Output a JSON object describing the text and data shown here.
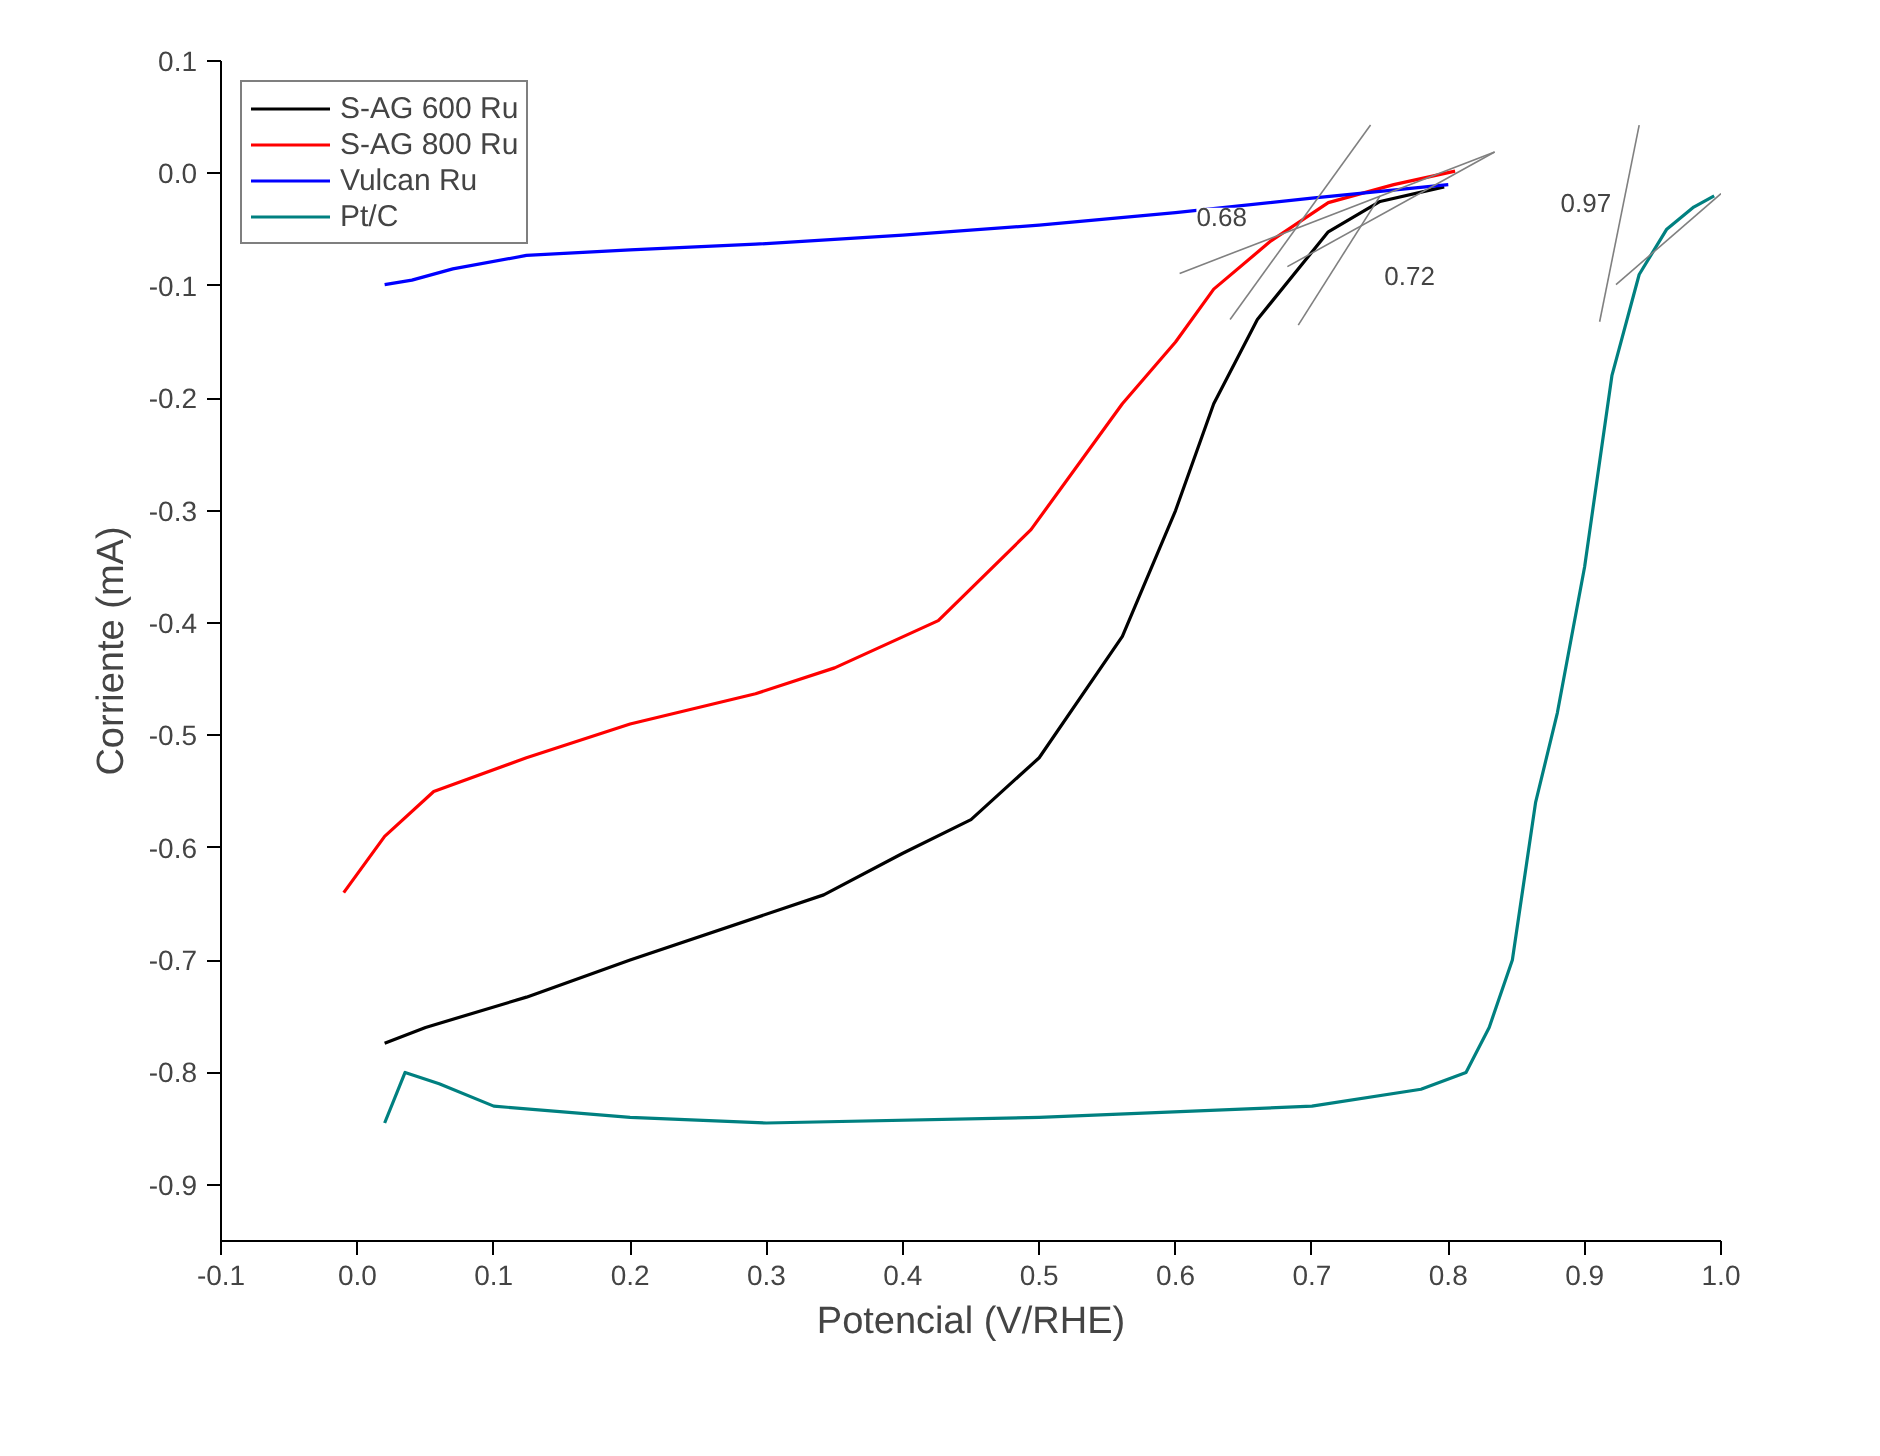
{
  "chart_data": {
    "type": "line",
    "xlabel": "Potencial (V/RHE)",
    "ylabel": "Corriente (mA)",
    "xlim": [
      -0.1,
      1.0
    ],
    "ylim": [
      -0.95,
      0.1
    ],
    "xticks": [
      -0.1,
      {
        "value": 0,
        "label": "0.0"
      },
      0.1,
      0.2,
      0.3,
      0.4,
      0.5,
      0.6,
      0.7,
      0.8,
      0.9,
      {
        "value": 1,
        "label": "1.0"
      }
    ],
    "yticks": [
      0.1,
      {
        "value": 0,
        "label": "0.0"
      },
      -0.1,
      -0.2,
      -0.3,
      -0.4,
      -0.5,
      -0.6,
      -0.7,
      -0.8,
      -0.9
    ],
    "grid": false,
    "legend": "top left",
    "marker": "none",
    "line_style": "solid",
    "series": [
      {
        "name": "S-AG 600 Ru",
        "color": "#000000",
        "x": [
          0.02,
          0.05,
          0.124,
          0.2,
          0.342,
          0.4,
          0.45,
          0.5,
          0.561,
          0.6,
          0.628,
          0.66,
          0.712,
          0.75,
          0.797
        ],
        "values": [
          -0.774,
          -0.76,
          -0.733,
          -0.7,
          -0.642,
          -0.605,
          -0.575,
          -0.52,
          -0.412,
          -0.3,
          -0.205,
          -0.13,
          -0.052,
          -0.025,
          -0.012
        ]
      },
      {
        "name": "S-AG 800 Ru",
        "color": "#ff0000",
        "x": [
          -0.01,
          0.02,
          0.056,
          0.124,
          0.2,
          0.292,
          0.35,
          0.426,
          0.494,
          0.561,
          0.6,
          0.628,
          0.67,
          0.712,
          0.76,
          0.805
        ],
        "values": [
          -0.64,
          -0.59,
          -0.55,
          -0.52,
          -0.49,
          -0.463,
          -0.44,
          -0.398,
          -0.317,
          -0.205,
          -0.15,
          -0.103,
          -0.06,
          -0.026,
          -0.01,
          0.002
        ]
      },
      {
        "name": "Vulcan Ru",
        "color": "#0000ff",
        "x": [
          0.02,
          0.04,
          0.07,
          0.124,
          0.2,
          0.292,
          0.4,
          0.5,
          0.6,
          0.7,
          0.8
        ],
        "values": [
          -0.099,
          -0.095,
          -0.085,
          -0.073,
          -0.068,
          -0.063,
          -0.055,
          -0.046,
          -0.035,
          -0.022,
          -0.01
        ]
      },
      {
        "name": "Pt/C",
        "color": "#008080",
        "x": [
          0.02,
          0.035,
          0.06,
          0.1,
          0.2,
          0.3,
          0.5,
          0.7,
          0.78,
          0.813,
          0.83,
          0.847,
          0.864,
          0.88,
          0.9,
          0.92,
          0.94,
          0.96,
          0.98,
          0.995
        ],
        "values": [
          -0.845,
          -0.8,
          -0.81,
          -0.83,
          -0.84,
          -0.845,
          -0.84,
          -0.83,
          -0.815,
          -0.8,
          -0.76,
          -0.7,
          -0.56,
          -0.48,
          -0.35,
          -0.18,
          -0.09,
          -0.05,
          -0.03,
          -0.02
        ]
      },
      {
        "color": "#808080",
        "x": [
          0.603,
          0.834
        ],
        "values": [
          -0.089,
          0.019
        ]
      },
      {
        "color": "#808080",
        "x": [
          0.64,
          0.743
        ],
        "values": [
          -0.13,
          0.043
        ]
      },
      {
        "color": "#808080",
        "x": [
          0.682,
          0.834
        ],
        "values": [
          -0.083,
          0.019
        ]
      },
      {
        "color": "#808080",
        "x": [
          0.69,
          0.75
        ],
        "values": [
          -0.135,
          -0.02
        ]
      },
      {
        "color": "#808080",
        "x": [
          0.923,
          1.0
        ],
        "values": [
          -0.099,
          -0.018
        ]
      },
      {
        "color": "#808080",
        "x": [
          0.911,
          0.94
        ],
        "values": [
          -0.132,
          0.043
        ]
      }
    ],
    "annotations": [
      {
        "text": "0.68",
        "x": 0.67,
        "y": -0.06
      },
      {
        "text": "0.72",
        "x": 0.712,
        "y": -0.052
      },
      {
        "text": "0.97",
        "x": 0.94,
        "y": -0.09
      }
    ]
  }
}
